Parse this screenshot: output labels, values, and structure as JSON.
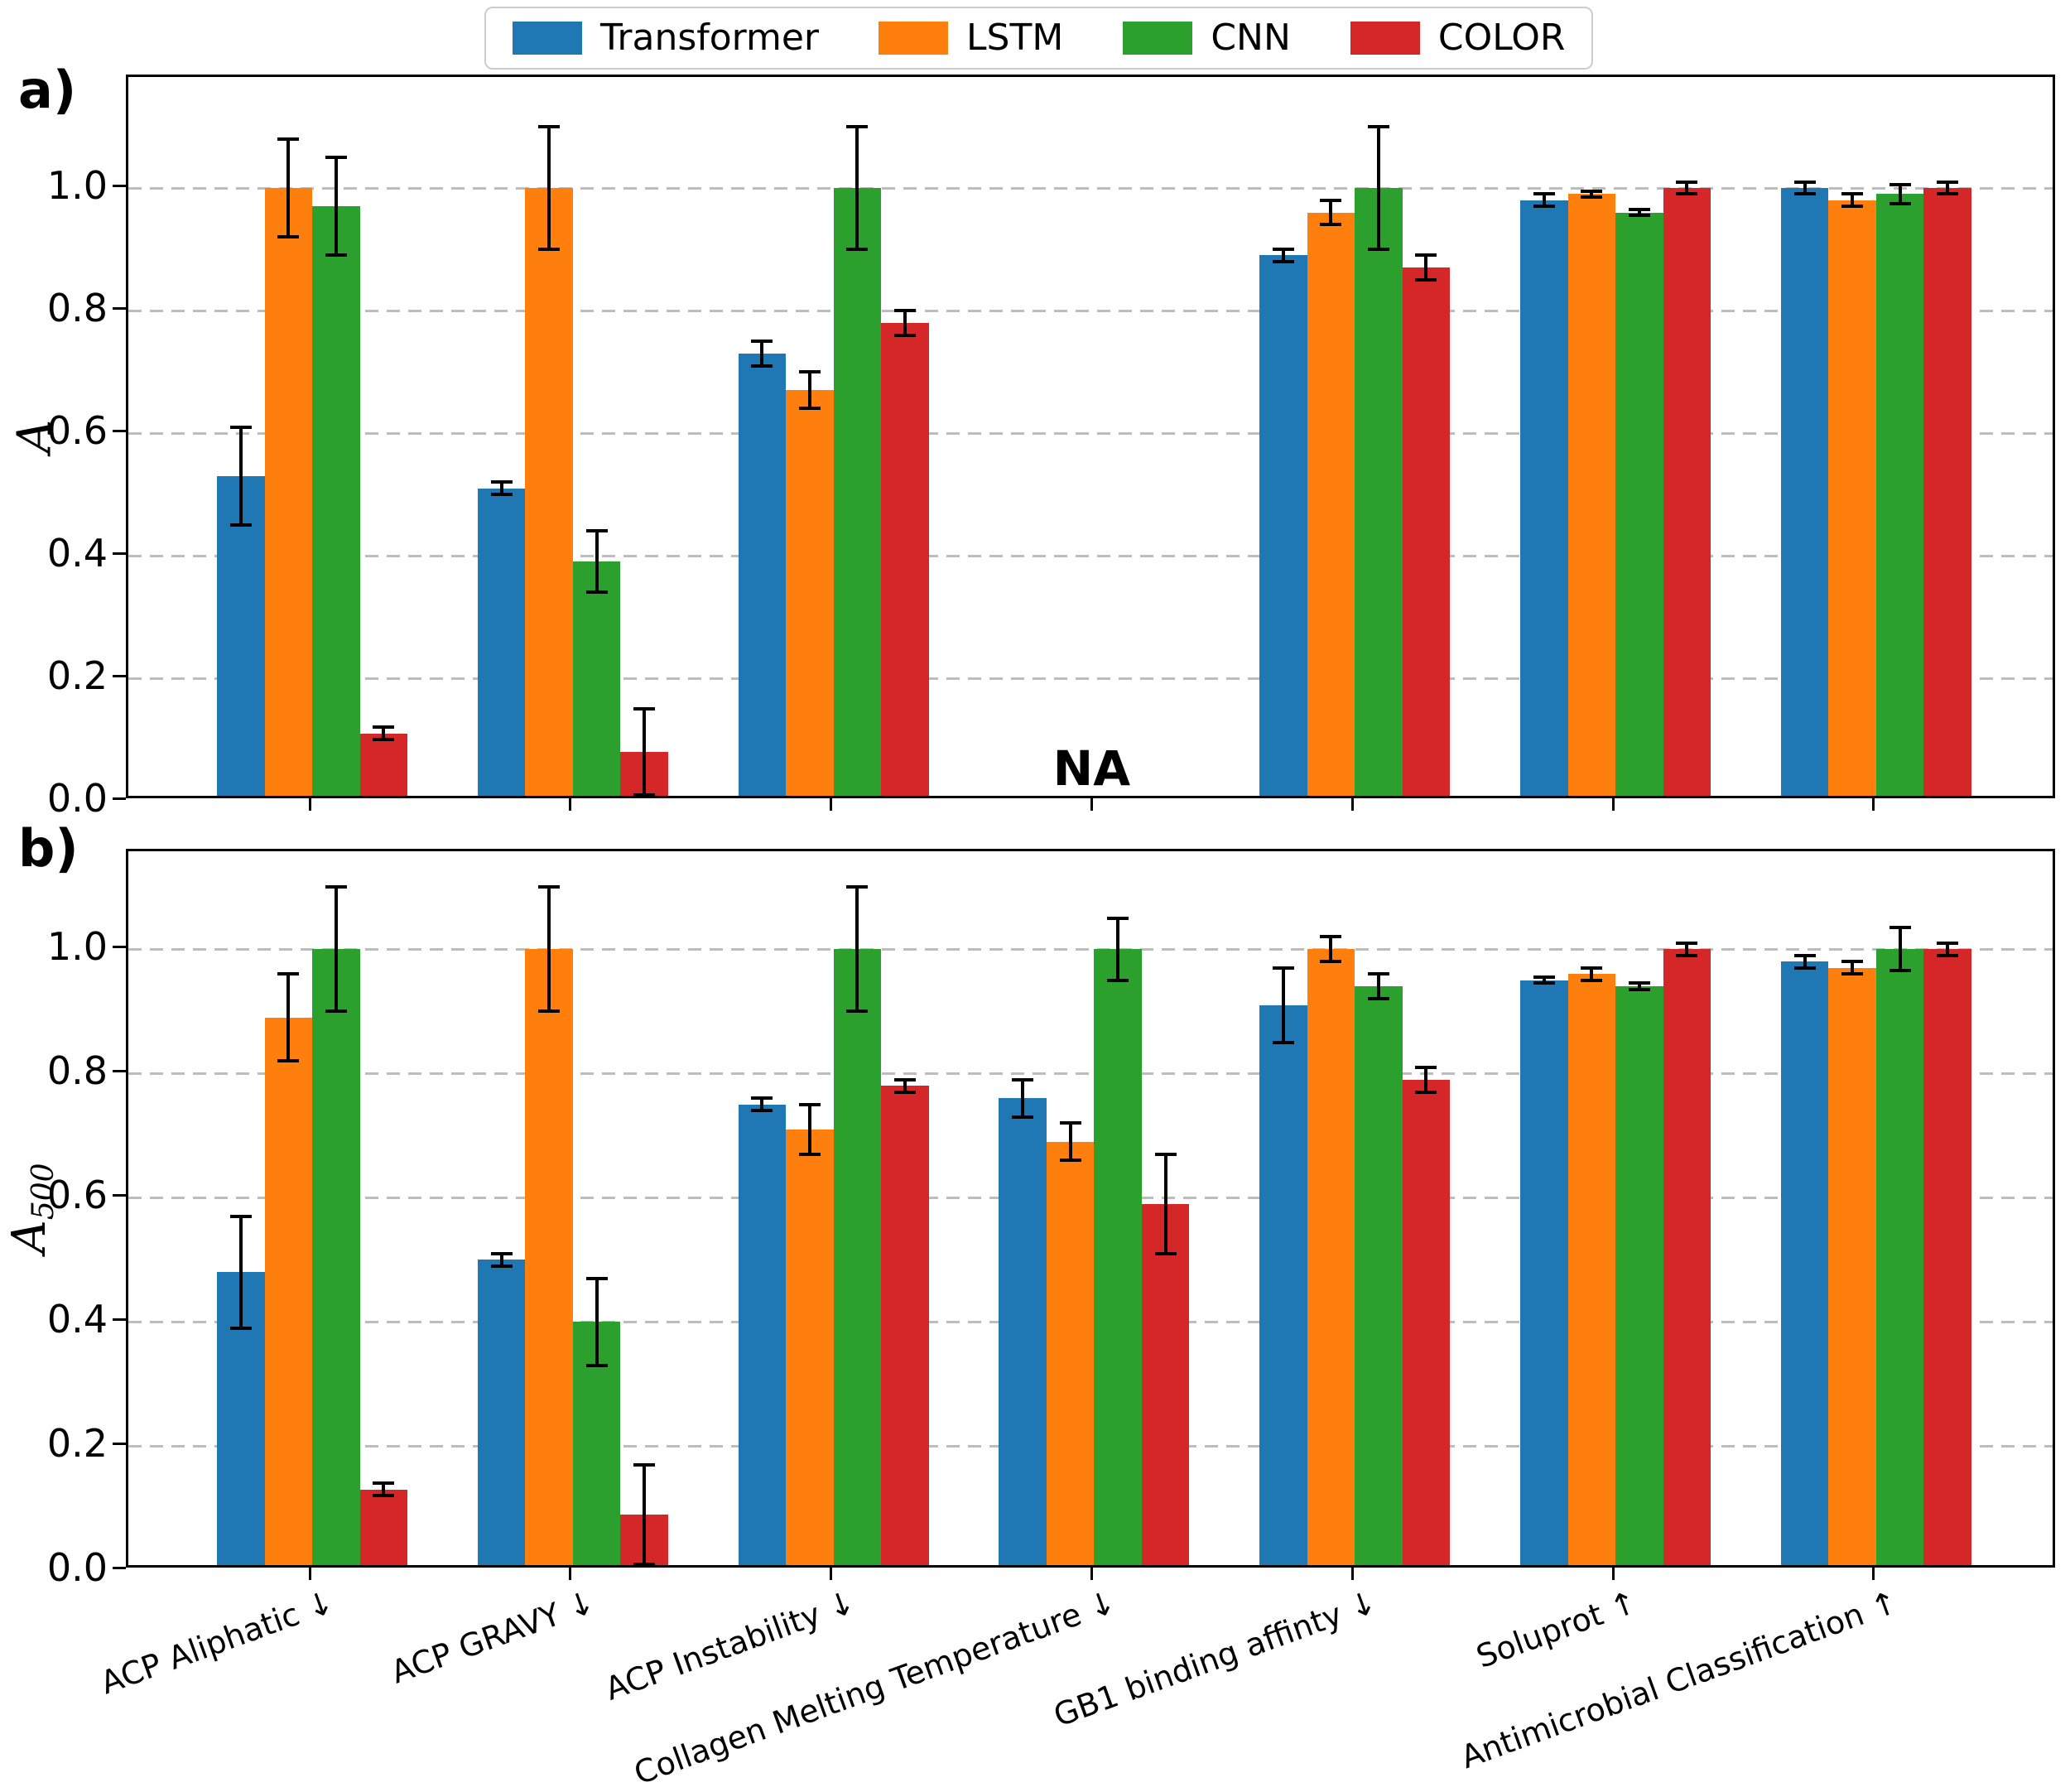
{
  "colors": {
    "transformer": "#1f77b4",
    "lstm": "#ff7f0e",
    "cnn": "#2ca02c",
    "color_model": "#d62728",
    "grid": "#bdbdbd",
    "axis": "#000000"
  },
  "legend": {
    "items": [
      {
        "label": "Transformer",
        "color": "#1f77b4"
      },
      {
        "label": "LSTM",
        "color": "#ff7f0e"
      },
      {
        "label": "CNN",
        "color": "#2ca02c"
      },
      {
        "label": "COLOR",
        "color": "#d62728"
      }
    ]
  },
  "categories": [
    "ACP Aliphatic ↓",
    "ACP GRAVY ↓",
    "ACP Instability ↓",
    "Collagen Melting Temperature ↓",
    "GB1 binding affinty ↓",
    "Soluprot ↑",
    "Antimicrobial Classification ↑"
  ],
  "chart_data": [
    {
      "type": "bar",
      "panel": "a",
      "corner_label": "a)",
      "ylabel": "A",
      "ylabel_subscript": "",
      "ylim": [
        0.0,
        1.18
      ],
      "yticks": [
        0.0,
        0.2,
        0.4,
        0.6,
        0.8,
        1.0
      ],
      "grid": "horizontal-dashed",
      "legend_position": "above-figure-center",
      "categories": [
        "ACP Aliphatic ↓",
        "ACP GRAVY ↓",
        "ACP Instability ↓",
        "Collagen Melting Temperature ↓",
        "GB1 binding affinty ↓",
        "Soluprot ↑",
        "Antimicrobial Classification ↑"
      ],
      "series": [
        {
          "name": "Transformer",
          "color": "#1f77b4",
          "values": [
            0.53,
            0.51,
            0.73,
            0,
            0.89,
            0.98,
            1.0
          ],
          "errors": [
            0.08,
            0.01,
            0.02,
            0.005,
            0.01,
            0.01,
            0.01
          ]
        },
        {
          "name": "LSTM",
          "color": "#ff7f0e",
          "values": [
            1.0,
            1.0,
            0.67,
            0,
            0.96,
            0.99,
            0.98
          ],
          "errors": [
            0.08,
            0.1,
            0.03,
            0.005,
            0.02,
            0.005,
            0.01
          ]
        },
        {
          "name": "CNN",
          "color": "#2ca02c",
          "values": [
            0.97,
            0.39,
            1.0,
            0,
            1.0,
            0.96,
            0.99
          ],
          "errors": [
            0.08,
            0.05,
            0.1,
            0.005,
            0.1,
            0.005,
            0.015
          ]
        },
        {
          "name": "COLOR",
          "color": "#d62728",
          "values": [
            0.11,
            0.08,
            0.78,
            0,
            0.87,
            1.0,
            1.0
          ],
          "errors": [
            0.01,
            0.07,
            0.02,
            0.005,
            0.02,
            0.01,
            0.01
          ]
        }
      ],
      "annotations": [
        {
          "text": "NA",
          "category_index": 3,
          "bold": true
        }
      ]
    },
    {
      "type": "bar",
      "panel": "b",
      "corner_label": "b)",
      "ylabel": "A",
      "ylabel_subscript": "500",
      "ylim": [
        0.0,
        1.15
      ],
      "yticks": [
        0.0,
        0.2,
        0.4,
        0.6,
        0.8,
        1.0
      ],
      "grid": "horizontal-dashed",
      "legend_position": "shared-above-figure",
      "categories": [
        "ACP Aliphatic ↓",
        "ACP GRAVY ↓",
        "ACP Instability ↓",
        "Collagen Melting Temperature ↓",
        "GB1 binding affinty ↓",
        "Soluprot ↑",
        "Antimicrobial Classification ↑"
      ],
      "series": [
        {
          "name": "Transformer",
          "color": "#1f77b4",
          "values": [
            0.48,
            0.5,
            0.75,
            0.76,
            0.91,
            0.95,
            0.98
          ],
          "errors": [
            0.09,
            0.01,
            0.01,
            0.03,
            0.06,
            0.005,
            0.01
          ]
        },
        {
          "name": "LSTM",
          "color": "#ff7f0e",
          "values": [
            0.89,
            1.0,
            0.71,
            0.69,
            1.0,
            0.96,
            0.97
          ],
          "errors": [
            0.07,
            0.1,
            0.04,
            0.03,
            0.02,
            0.01,
            0.01
          ]
        },
        {
          "name": "CNN",
          "color": "#2ca02c",
          "values": [
            1.0,
            0.4,
            1.0,
            1.0,
            0.94,
            0.94,
            1.0
          ],
          "errors": [
            0.1,
            0.07,
            0.1,
            0.05,
            0.02,
            0.005,
            0.035
          ]
        },
        {
          "name": "COLOR",
          "color": "#d62728",
          "values": [
            0.13,
            0.09,
            0.78,
            0.59,
            0.79,
            1.0,
            1.0
          ],
          "errors": [
            0.01,
            0.08,
            0.01,
            0.08,
            0.02,
            0.01,
            0.01
          ]
        }
      ],
      "annotations": []
    }
  ]
}
